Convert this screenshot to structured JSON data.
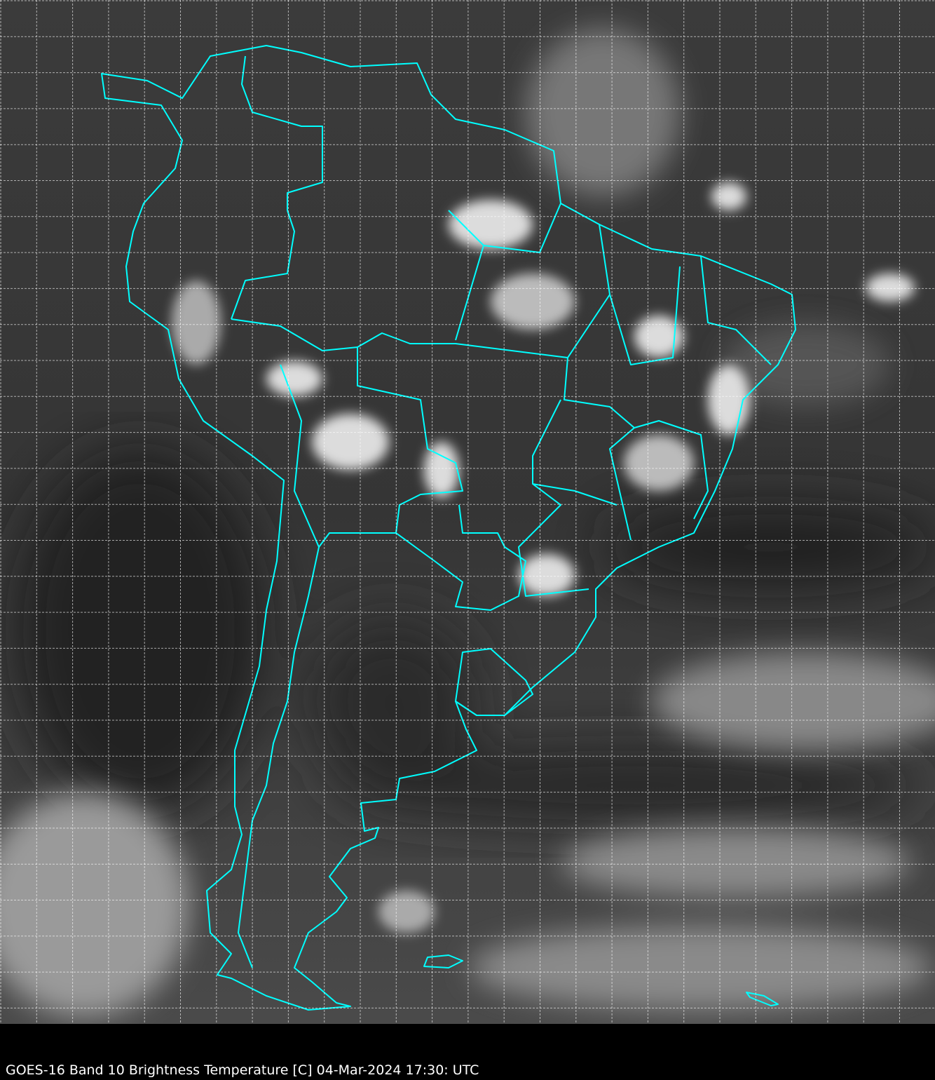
{
  "caption": "GOES-16 Band 10  Brightness Temperature [C] 04-Mar-2024 17:30: UTC",
  "colors": {
    "background": "#000000",
    "imagery_dark": "#3a3a3a",
    "clouds": "#e6e6e6",
    "borders": "#00ffff",
    "grid": "#ffffff"
  },
  "map": {
    "imagery": "grayscale infrared satellite image of South America",
    "gridlines": true,
    "grid_style": "dashed"
  }
}
